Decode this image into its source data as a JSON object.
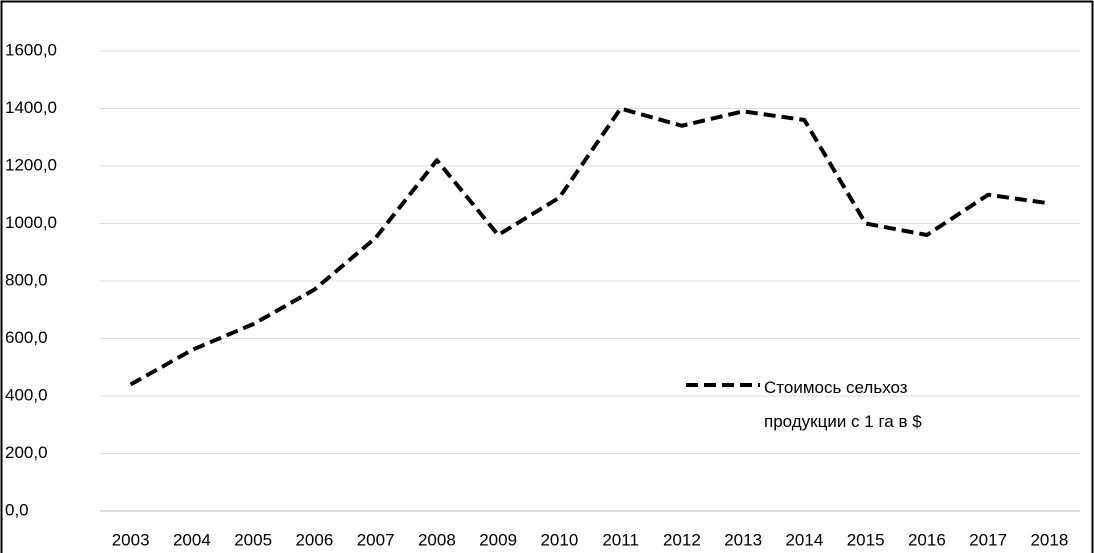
{
  "chart_data": {
    "type": "line",
    "categories": [
      "2003",
      "2004",
      "2005",
      "2006",
      "2007",
      "2008",
      "2009",
      "2010",
      "2011",
      "2012",
      "2013",
      "2014",
      "2015",
      "2016",
      "2017",
      "2018"
    ],
    "series": [
      {
        "name": "Стоимось сельхоз продукции с 1 га в $",
        "color": "#000000",
        "values": [
          440,
          560,
          650,
          770,
          950,
          1220,
          960,
          1090,
          1400,
          1340,
          1390,
          1360,
          1000,
          960,
          1100,
          1070
        ]
      }
    ],
    "ylim": [
      0,
      1600
    ],
    "yticks": [
      {
        "value": 0,
        "label": "0,0"
      },
      {
        "value": 200,
        "label": "200,0"
      },
      {
        "value": 400,
        "label": "400,0"
      },
      {
        "value": 600,
        "label": "600,0"
      },
      {
        "value": 800,
        "label": "800,0"
      },
      {
        "value": 1000,
        "label": "1000,0"
      },
      {
        "value": 1200,
        "label": "1200,0"
      },
      {
        "value": 1400,
        "label": "1400,0"
      },
      {
        "value": 1600,
        "label": "1600,0"
      }
    ],
    "grid": true
  }
}
